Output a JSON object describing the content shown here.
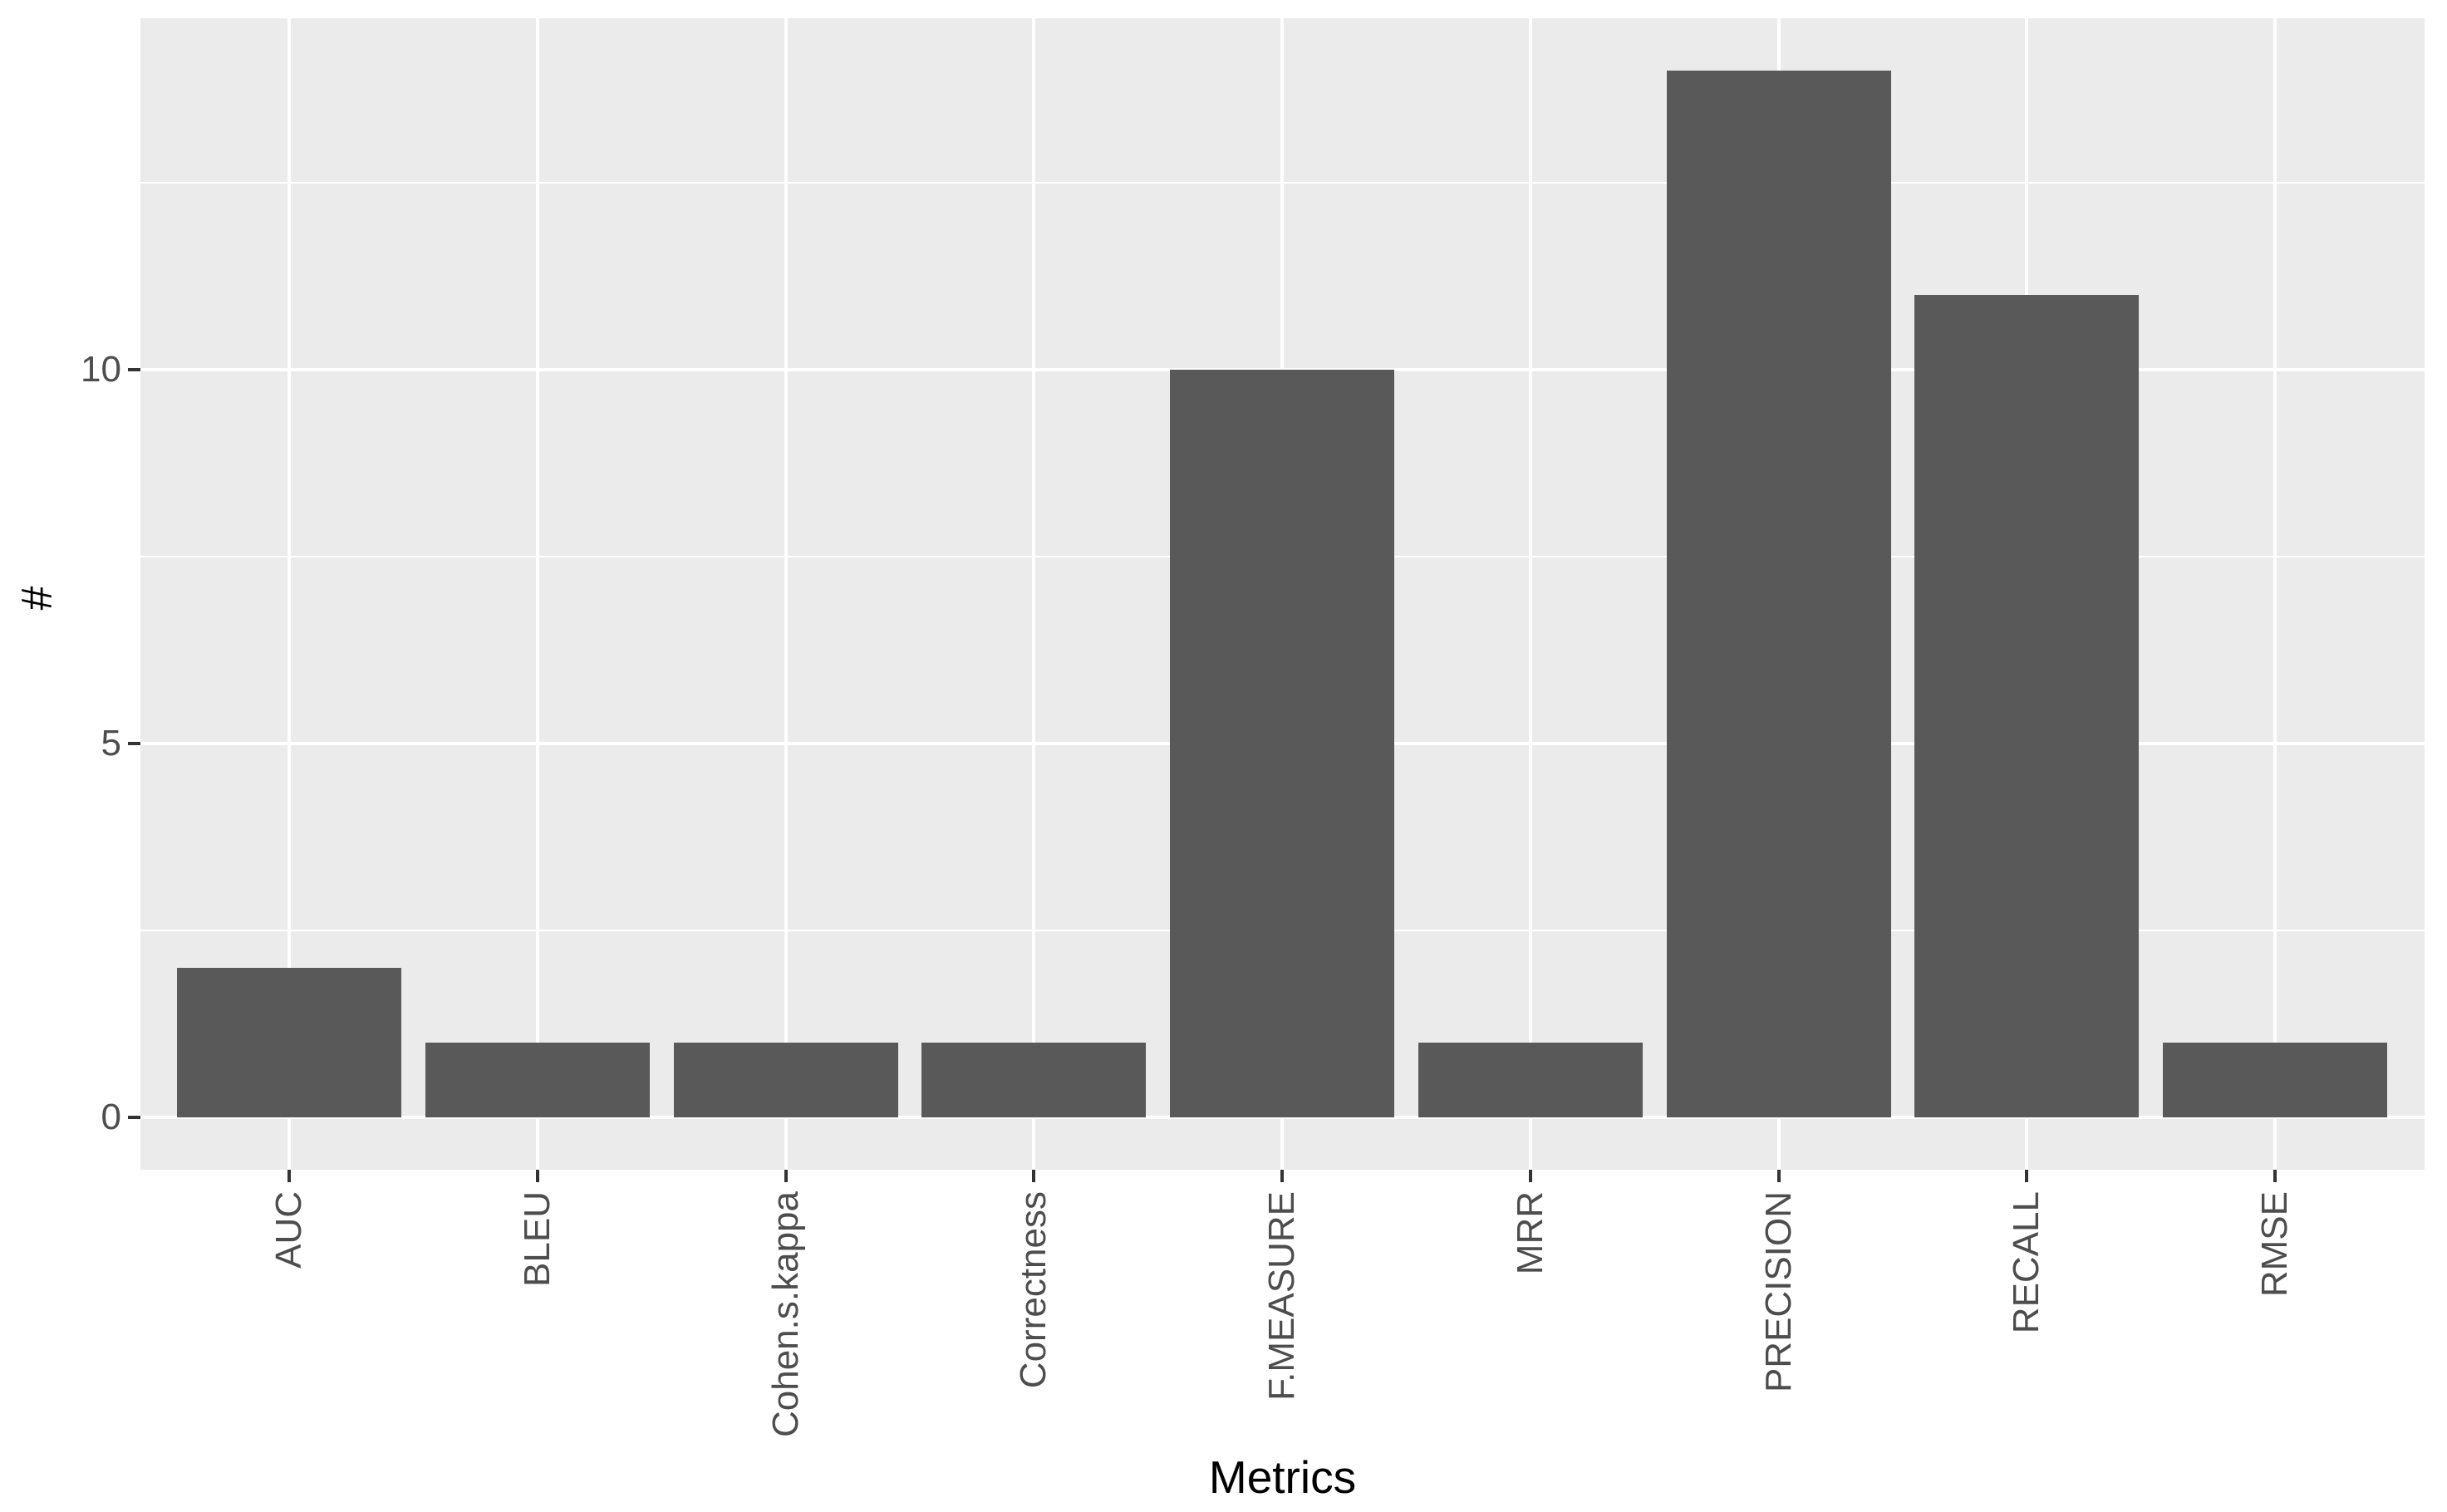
{
  "figure": {
    "background": "#FFFFFF"
  },
  "chart_data": {
    "type": "bar",
    "title": "",
    "xlabel": "Metrics",
    "ylabel": "#",
    "categories": [
      "AUC",
      "BLEU",
      "Cohen.s.kappa",
      "Correctness",
      "F.MEASURE",
      "MRR",
      "PRECISION",
      "RECALL",
      "RMSE"
    ],
    "values": [
      2,
      1,
      1,
      1,
      10,
      1,
      14,
      11,
      1
    ],
    "yticks": [
      0,
      5,
      10
    ],
    "yminor": [
      2.5,
      7.5,
      12.5
    ],
    "ylim": [
      -0.7,
      14.7
    ],
    "grid": "white major and minor horizontal lines, white vertical line at each category center",
    "legend": "none",
    "style": {
      "bar_color": "#595959",
      "panel_background": "#EBEBEB",
      "gridline_color": "#FFFFFF",
      "axis_text_color": "#4D4D4D",
      "axis_title_color": "#000000",
      "tick_mark_color": "#333333"
    }
  }
}
